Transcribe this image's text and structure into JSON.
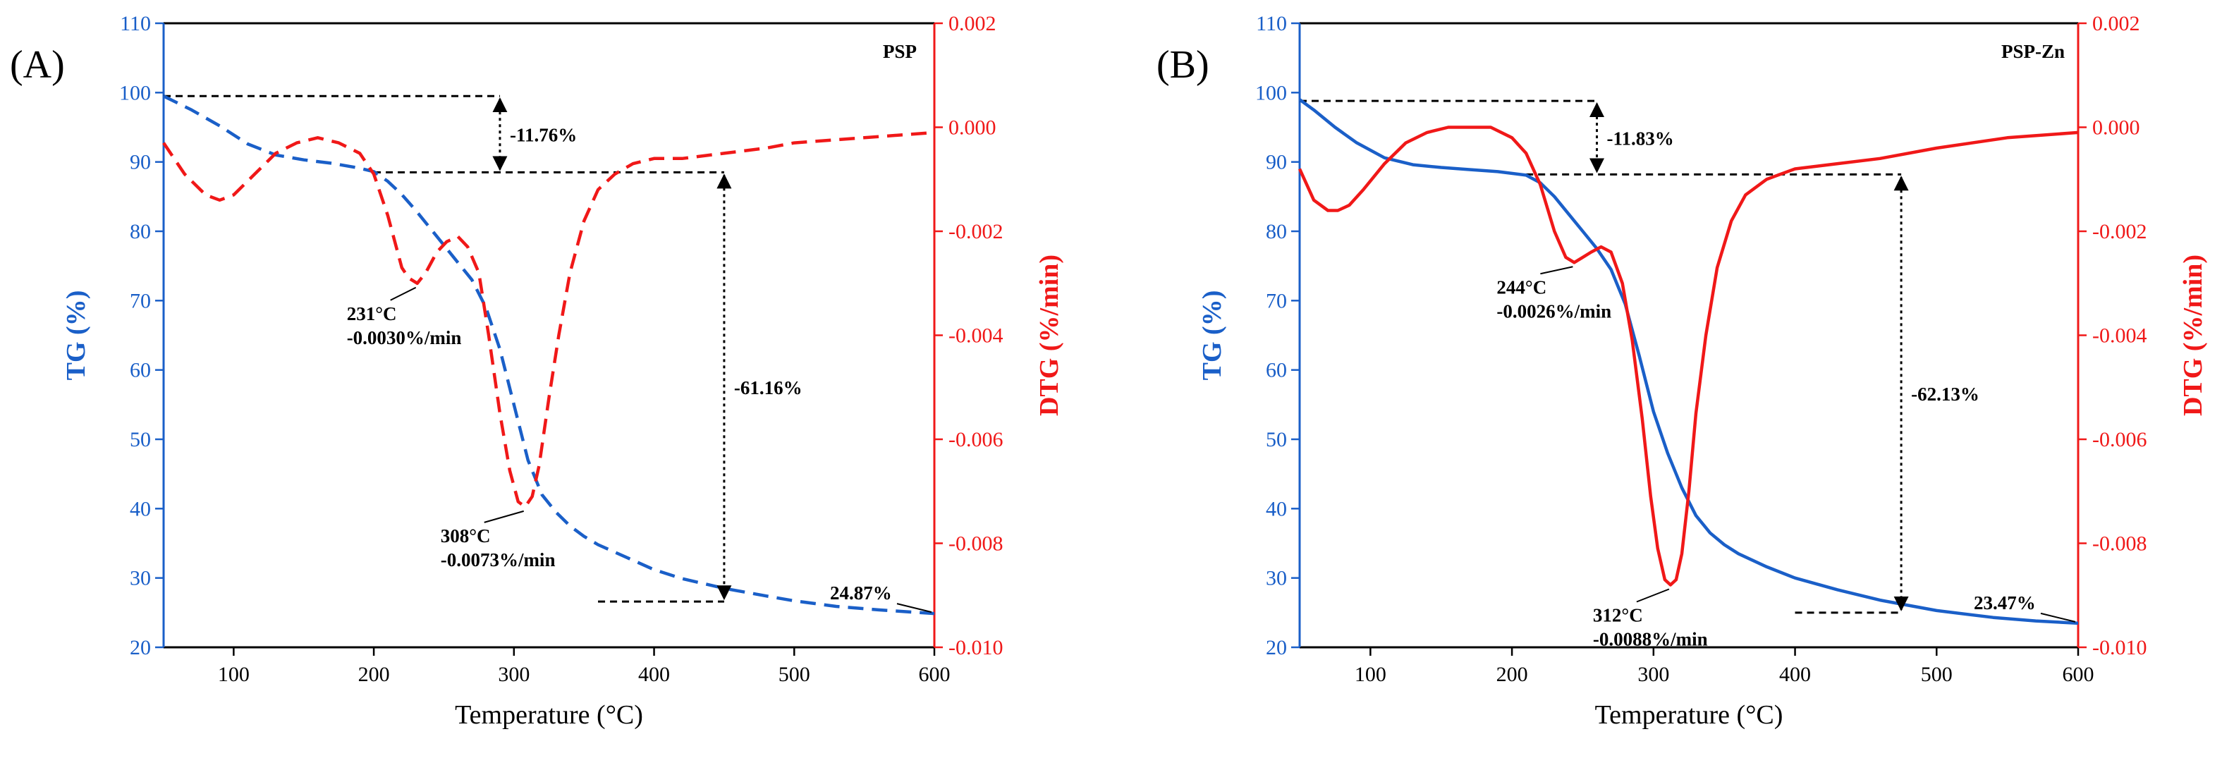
{
  "colors": {
    "tg": "#1a5fc8",
    "dtg": "#f01818",
    "annotation": "#000000",
    "axes": "#000000"
  },
  "chart_data": [
    {
      "panel_label": "(A)",
      "type": "line",
      "title": "PSP",
      "xlabel": "Temperature (°C)",
      "ylabel_left": "TG (%)",
      "ylabel_right": "DTG (%/min)",
      "xlim": [
        50,
        600
      ],
      "ylim_left": [
        20,
        110
      ],
      "ylim_right": [
        -0.01,
        0.002
      ],
      "x_ticks": [
        100,
        200,
        300,
        400,
        500,
        600
      ],
      "y_ticks_left": [
        20,
        30,
        40,
        50,
        60,
        70,
        80,
        90,
        100,
        110
      ],
      "y_ticks_right": [
        "0.002",
        "0.000",
        "-0.002",
        "-0.004",
        "-0.006",
        "-0.008",
        "-0.010"
      ],
      "line_style": "dashed",
      "series": [
        {
          "name": "TG",
          "axis": "left",
          "color": "#1a5fc8",
          "x": [
            50,
            70,
            90,
            110,
            130,
            150,
            170,
            190,
            200,
            210,
            220,
            230,
            240,
            250,
            260,
            270,
            280,
            290,
            300,
            310,
            320,
            330,
            340,
            350,
            360,
            380,
            400,
            420,
            450,
            480,
            500,
            530,
            560,
            600
          ],
          "y": [
            99.5,
            97.5,
            95.2,
            92.6,
            91.0,
            90.3,
            89.8,
            89.1,
            88.6,
            87.2,
            85.3,
            83.0,
            80.5,
            78.0,
            75.5,
            73.0,
            69.0,
            63.0,
            55.0,
            47.0,
            42.0,
            39.5,
            37.5,
            36.0,
            34.8,
            33.0,
            31.2,
            29.9,
            28.5,
            27.4,
            26.7,
            25.9,
            25.4,
            24.87
          ]
        },
        {
          "name": "DTG",
          "axis": "right",
          "color": "#f01818",
          "x": [
            50,
            65,
            80,
            90,
            100,
            115,
            130,
            145,
            160,
            175,
            190,
            200,
            210,
            220,
            225,
            231,
            237,
            245,
            252,
            260,
            267,
            275,
            282,
            290,
            297,
            303,
            308,
            313,
            318,
            325,
            332,
            340,
            350,
            360,
            372,
            385,
            400,
            420,
            450,
            480,
            500,
            550,
            600
          ],
          "y": [
            -0.0003,
            -0.0009,
            -0.0013,
            -0.0014,
            -0.0013,
            -0.0009,
            -0.0005,
            -0.0003,
            -0.0002,
            -0.0003,
            -0.0005,
            -0.0009,
            -0.0017,
            -0.0027,
            -0.0029,
            -0.003,
            -0.0028,
            -0.0024,
            -0.0022,
            -0.0021,
            -0.0023,
            -0.0028,
            -0.004,
            -0.0055,
            -0.0066,
            -0.0072,
            -0.0073,
            -0.0071,
            -0.0065,
            -0.0052,
            -0.004,
            -0.0028,
            -0.0018,
            -0.0012,
            -0.0009,
            -0.0007,
            -0.0006,
            -0.0006,
            -0.0005,
            -0.0004,
            -0.0003,
            -0.0002,
            -0.0001
          ]
        }
      ],
      "annotations": [
        {
          "text": "-11.76%",
          "kind": "step",
          "temperature": 290,
          "from_tg": 99.5,
          "to_tg": 88.5
        },
        {
          "text": "-61.16%",
          "kind": "step",
          "temperature": 450,
          "from_tg": 88.5,
          "to_tg": 26.6
        },
        {
          "text": "24.87%",
          "kind": "residual",
          "temperature": 600,
          "tg": 24.87
        },
        {
          "text": [
            "231°C",
            "-0.0030%/min"
          ],
          "kind": "peak",
          "temperature": 231,
          "dtg": -0.003
        },
        {
          "text": [
            "308°C",
            "-0.0073%/min"
          ],
          "kind": "peak",
          "temperature": 308,
          "dtg": -0.0073
        }
      ],
      "dashed_guides": [
        {
          "x": [
            50,
            290
          ],
          "tg": 99.5
        },
        {
          "x": [
            200,
            450
          ],
          "tg": 88.5
        },
        {
          "x": [
            360,
            450
          ],
          "tg": 26.6
        }
      ]
    },
    {
      "panel_label": "(B)",
      "type": "line",
      "title": "PSP-Zn",
      "xlabel": "Temperature (°C)",
      "ylabel_left": "TG (%)",
      "ylabel_right": "DTG (%/min)",
      "xlim": [
        50,
        600
      ],
      "ylim_left": [
        20,
        110
      ],
      "ylim_right": [
        -0.01,
        0.002
      ],
      "x_ticks": [
        100,
        200,
        300,
        400,
        500,
        600
      ],
      "y_ticks_left": [
        20,
        30,
        40,
        50,
        60,
        70,
        80,
        90,
        100,
        110
      ],
      "y_ticks_right": [
        "0.002",
        "0.000",
        "-0.002",
        "-0.004",
        "-0.006",
        "-0.008",
        "-0.010"
      ],
      "line_style": "solid",
      "series": [
        {
          "name": "TG",
          "axis": "left",
          "color": "#1a5fc8",
          "x": [
            50,
            60,
            75,
            90,
            110,
            130,
            150,
            170,
            190,
            210,
            220,
            230,
            240,
            250,
            260,
            270,
            280,
            290,
            300,
            310,
            320,
            330,
            340,
            350,
            360,
            380,
            400,
            430,
            460,
            500,
            540,
            570,
            600
          ],
          "y": [
            99.0,
            97.5,
            95.0,
            92.8,
            90.6,
            89.6,
            89.2,
            88.9,
            88.6,
            88.1,
            87.0,
            85.0,
            82.5,
            80.0,
            77.5,
            74.5,
            69.5,
            62.0,
            54.0,
            48.0,
            43.0,
            39.0,
            36.5,
            34.8,
            33.5,
            31.6,
            30.0,
            28.3,
            26.8,
            25.3,
            24.3,
            23.8,
            23.47
          ]
        },
        {
          "name": "DTG",
          "axis": "right",
          "color": "#f01818",
          "x": [
            50,
            60,
            70,
            77,
            85,
            95,
            110,
            125,
            140,
            155,
            170,
            185,
            200,
            210,
            220,
            230,
            238,
            244,
            250,
            256,
            263,
            270,
            278,
            285,
            292,
            298,
            303,
            308,
            312,
            316,
            320,
            325,
            330,
            337,
            345,
            355,
            365,
            380,
            400,
            430,
            460,
            500,
            550,
            600
          ],
          "y": [
            -0.0008,
            -0.0014,
            -0.0016,
            -0.0016,
            -0.0015,
            -0.0012,
            -0.0007,
            -0.0003,
            -0.0001,
            0.0,
            0.0,
            0.0,
            -0.0002,
            -0.0005,
            -0.0011,
            -0.002,
            -0.0025,
            -0.0026,
            -0.0025,
            -0.0024,
            -0.0023,
            -0.0024,
            -0.003,
            -0.0041,
            -0.0056,
            -0.0071,
            -0.0081,
            -0.0087,
            -0.0088,
            -0.0087,
            -0.0082,
            -0.007,
            -0.0055,
            -0.004,
            -0.0027,
            -0.0018,
            -0.0013,
            -0.001,
            -0.0008,
            -0.0007,
            -0.0006,
            -0.0004,
            -0.0002,
            -0.0001
          ]
        }
      ],
      "annotations": [
        {
          "text": "-11.83%",
          "kind": "step",
          "temperature": 260,
          "from_tg": 98.8,
          "to_tg": 88.2
        },
        {
          "text": "-62.13%",
          "kind": "step",
          "temperature": 475,
          "from_tg": 88.2,
          "to_tg": 25.0
        },
        {
          "text": "23.47%",
          "kind": "residual",
          "temperature": 600,
          "tg": 23.47
        },
        {
          "text": [
            "244°C",
            "-0.0026%/min"
          ],
          "kind": "peak",
          "temperature": 244,
          "dtg": -0.0026
        },
        {
          "text": [
            "312°C",
            "-0.0088%/min"
          ],
          "kind": "peak",
          "temperature": 312,
          "dtg": -0.0088
        }
      ],
      "dashed_guides": [
        {
          "x": [
            50,
            260
          ],
          "tg": 98.8
        },
        {
          "x": [
            210,
            475
          ],
          "tg": 88.2
        },
        {
          "x": [
            400,
            475
          ],
          "tg": 25.0
        }
      ]
    }
  ]
}
